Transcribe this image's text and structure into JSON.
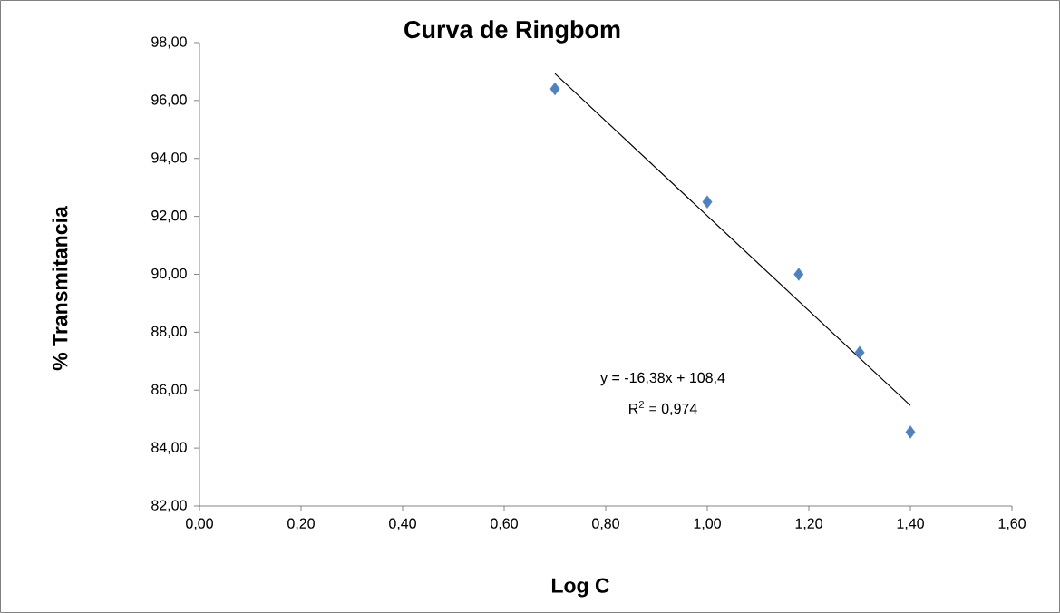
{
  "chart_data": {
    "type": "scatter",
    "title": "Curva de Ringbom",
    "xlabel": "Log C",
    "ylabel": "% Transmitancia",
    "marker": "diamond",
    "grid": false,
    "xlim": [
      0,
      1.6
    ],
    "ylim": [
      82,
      98
    ],
    "xticks": [
      {
        "value": 0,
        "label": "0,00"
      },
      {
        "value": 0.2,
        "label": "0,20"
      },
      {
        "value": 0.4,
        "label": "0,40"
      },
      {
        "value": 0.6,
        "label": "0,60"
      },
      {
        "value": 0.8,
        "label": "0,80"
      },
      {
        "value": 1.0,
        "label": "1,00"
      },
      {
        "value": 1.2,
        "label": "1,20"
      },
      {
        "value": 1.4,
        "label": "1,40"
      },
      {
        "value": 1.6,
        "label": "1,60"
      }
    ],
    "yticks": [
      {
        "value": 82,
        "label": "82,00"
      },
      {
        "value": 84,
        "label": "84,00"
      },
      {
        "value": 86,
        "label": "86,00"
      },
      {
        "value": 88,
        "label": "88,00"
      },
      {
        "value": 90,
        "label": "90,00"
      },
      {
        "value": 92,
        "label": "92,00"
      },
      {
        "value": 94,
        "label": "94,00"
      },
      {
        "value": 96,
        "label": "96,00"
      },
      {
        "value": 98,
        "label": "98,00"
      }
    ],
    "series": [
      {
        "color": "#4f81bd",
        "x": [
          0.7,
          1.0,
          1.18,
          1.3,
          1.4
        ],
        "values": [
          96.4,
          92.5,
          90.0,
          87.3,
          84.55
        ]
      },
      {
        "type": "line",
        "color": "#000000",
        "marker": "none",
        "line_style": "solid",
        "x": [
          0.7,
          1.4
        ],
        "values": [
          96.93,
          85.47
        ]
      }
    ],
    "annotations": [
      "y = -16,38x + 108,4",
      "R$^{2}$ = 0,974"
    ]
  }
}
